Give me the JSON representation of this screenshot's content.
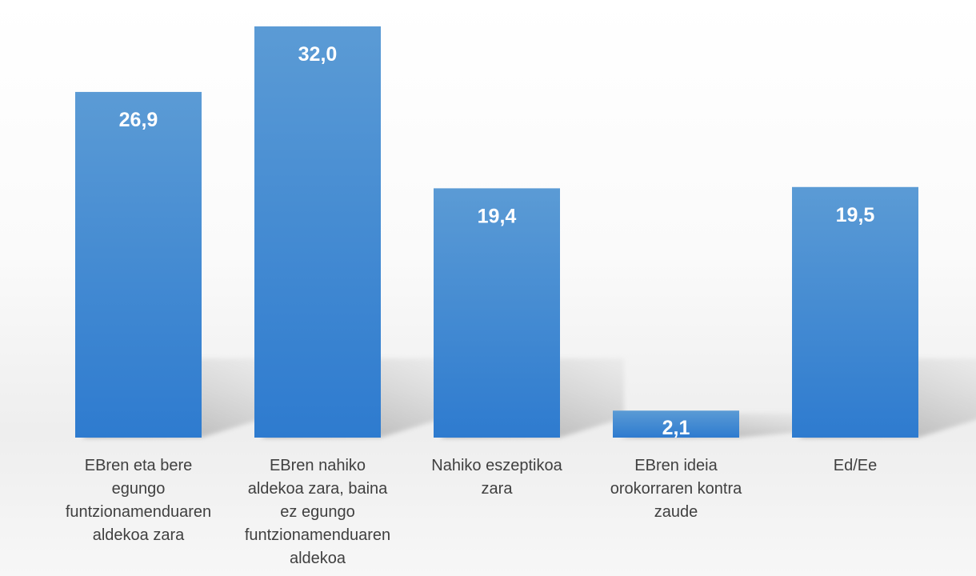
{
  "chart_data": {
    "type": "bar",
    "categories": [
      "EBren eta bere egungo funtzionamenduaren aldekoa zara",
      "EBren nahiko aldekoa zara, baina ez egungo funtzionamenduaren aldekoa",
      "Nahiko eszeptikoa zara",
      "EBren ideia orokorraren kontra zaude",
      "Ed/Ee"
    ],
    "category_lines": [
      [
        "EBren eta bere",
        "egungo",
        "funtzionamenduaren",
        "aldekoa zara"
      ],
      [
        "EBren nahiko",
        "aldekoa zara, baina",
        "ez egungo",
        "funtzionamenduaren",
        "aldekoa"
      ],
      [
        "Nahiko eszeptikoa",
        "zara"
      ],
      [
        "EBren ideia",
        "orokorraren kontra",
        "zaude"
      ],
      [
        "Ed/Ee"
      ]
    ],
    "values": [
      26.9,
      32.0,
      19.4,
      2.1,
      19.5
    ],
    "value_labels": [
      "26,9",
      "32,0",
      "19,4",
      "2,1",
      "19,5"
    ],
    "title": "",
    "xlabel": "",
    "ylabel": "",
    "ylim": [
      0,
      32
    ],
    "grid": false,
    "legend": "none",
    "colors": {
      "bar_top": "#5B9BD5",
      "bar_bottom": "#2E7BCF",
      "label": "#ffffff",
      "category_text": "#404040",
      "shadow": "#9a9a9a",
      "background_top": "#ffffff",
      "background_floor": "#e4e4e4"
    }
  }
}
